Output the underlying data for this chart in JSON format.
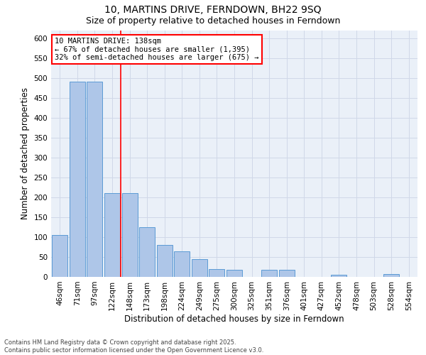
{
  "title1": "10, MARTINS DRIVE, FERNDOWN, BH22 9SQ",
  "title2": "Size of property relative to detached houses in Ferndown",
  "xlabel": "Distribution of detached houses by size in Ferndown",
  "ylabel": "Number of detached properties",
  "footnote": "Contains HM Land Registry data © Crown copyright and database right 2025.\nContains public sector information licensed under the Open Government Licence v3.0.",
  "categories": [
    "46sqm",
    "71sqm",
    "97sqm",
    "122sqm",
    "148sqm",
    "173sqm",
    "198sqm",
    "224sqm",
    "249sqm",
    "275sqm",
    "300sqm",
    "325sqm",
    "351sqm",
    "376sqm",
    "401sqm",
    "427sqm",
    "452sqm",
    "478sqm",
    "503sqm",
    "528sqm",
    "554sqm"
  ],
  "values": [
    105,
    490,
    490,
    210,
    210,
    125,
    80,
    65,
    45,
    20,
    17,
    0,
    17,
    17,
    0,
    0,
    5,
    0,
    0,
    8,
    0
  ],
  "bar_color": "#aec6e8",
  "bar_edge_color": "#5b9bd5",
  "vline_color": "red",
  "annotation_text": "10 MARTINS DRIVE: 138sqm\n← 67% of detached houses are smaller (1,395)\n32% of semi-detached houses are larger (675) →",
  "annotation_box_color": "white",
  "annotation_box_edge_color": "red",
  "ylim": [
    0,
    620
  ],
  "yticks": [
    0,
    50,
    100,
    150,
    200,
    250,
    300,
    350,
    400,
    450,
    500,
    550,
    600
  ],
  "grid_color": "#d0d8e8",
  "background_color": "#eaf0f8",
  "title_fontsize": 10,
  "subtitle_fontsize": 9,
  "tick_fontsize": 7.5,
  "label_fontsize": 8.5
}
